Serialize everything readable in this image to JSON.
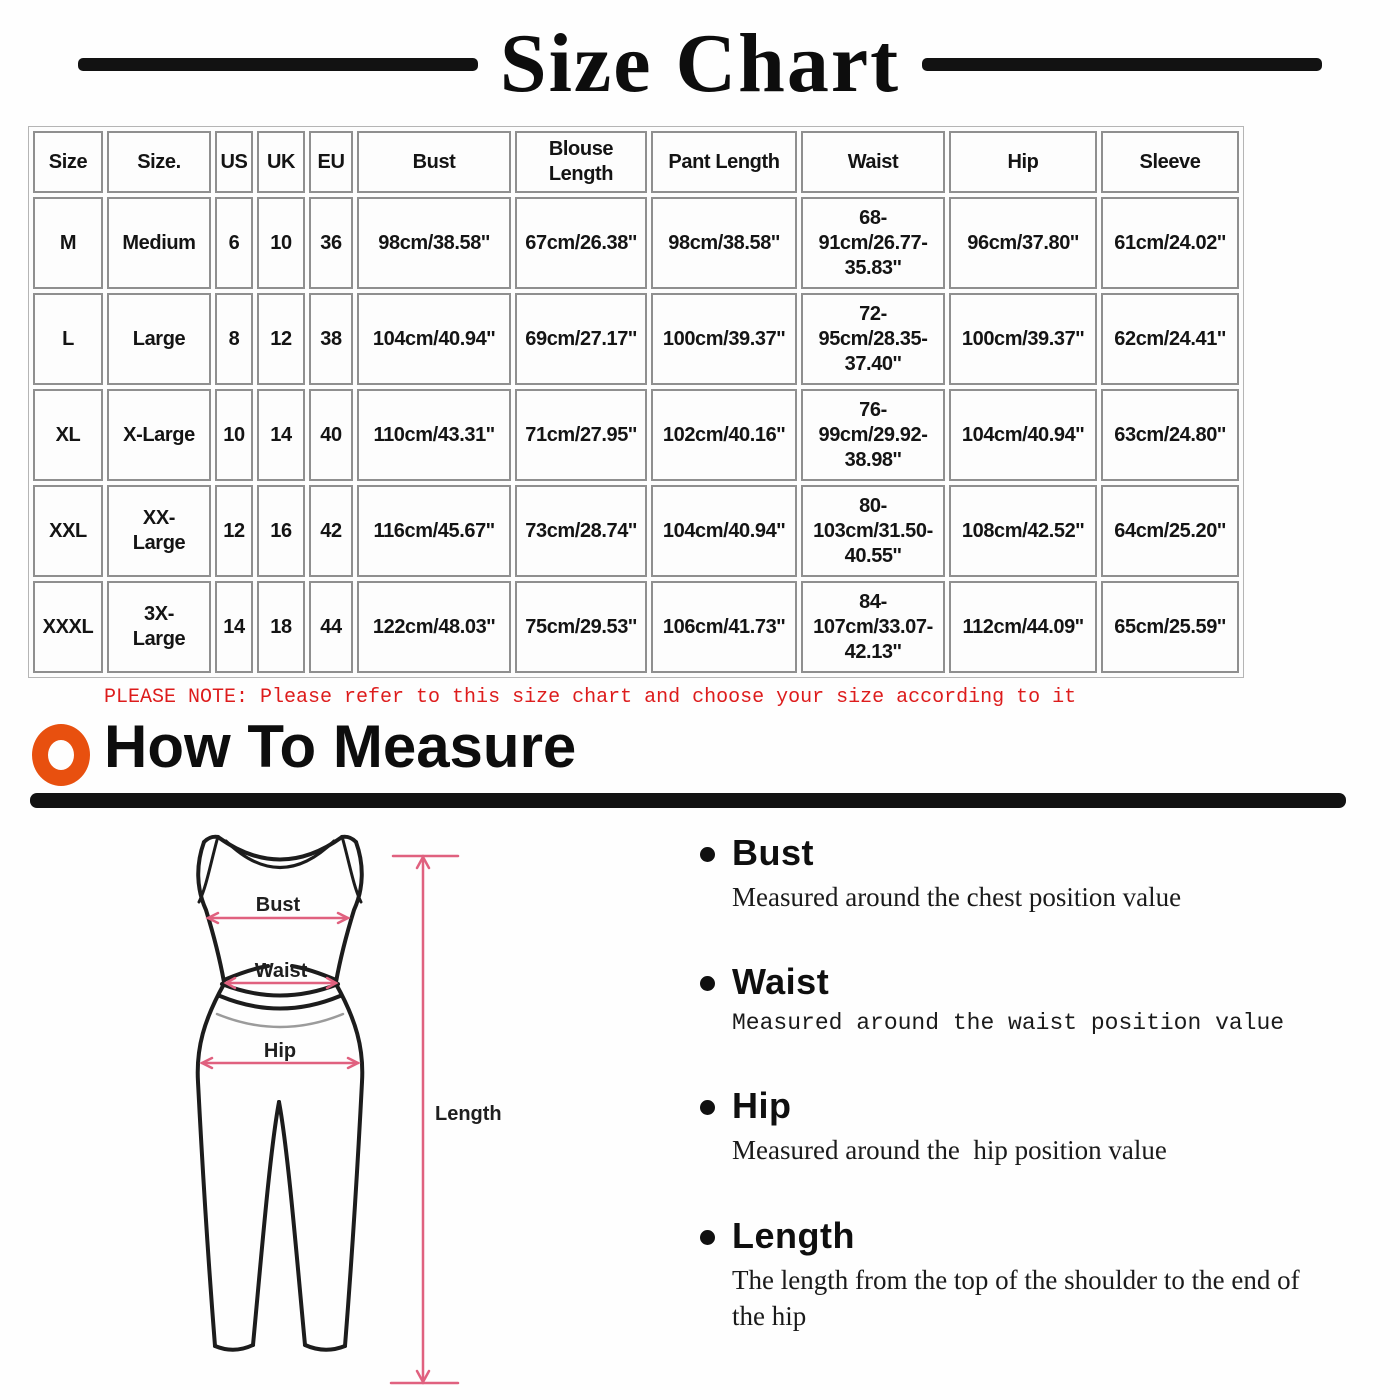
{
  "title": "Size Chart",
  "table": {
    "headers": [
      "Size",
      "Size.",
      "US",
      "UK",
      "EU",
      "Bust",
      "Blouse Length",
      "Pant Length",
      "Waist",
      "Hip",
      "Sleeve"
    ],
    "rows": [
      [
        "M",
        "Medium",
        "6",
        "10",
        "36",
        "98cm/38.58''",
        "67cm/26.38''",
        "98cm/38.58''",
        "68-\n91cm/26.77-\n35.83''",
        "96cm/37.80''",
        "61cm/24.02''"
      ],
      [
        "L",
        "Large",
        "8",
        "12",
        "38",
        "104cm/40.94''",
        "69cm/27.17''",
        "100cm/39.37''",
        "72-\n95cm/28.35-\n37.40''",
        "100cm/39.37''",
        "62cm/24.41''"
      ],
      [
        "XL",
        "X-Large",
        "10",
        "14",
        "40",
        "110cm/43.31''",
        "71cm/27.95''",
        "102cm/40.16''",
        "76-\n99cm/29.92-\n38.98''",
        "104cm/40.94''",
        "63cm/24.80''"
      ],
      [
        "XXL",
        "XX-\nLarge",
        "12",
        "16",
        "42",
        "116cm/45.67''",
        "73cm/28.74''",
        "104cm/40.94''",
        "80-\n103cm/31.50-\n40.55''",
        "108cm/42.52''",
        "64cm/25.20''"
      ],
      [
        "XXXL",
        "3X-\nLarge",
        "14",
        "18",
        "44",
        "122cm/48.03''",
        "75cm/29.53''",
        "106cm/41.73''",
        "84-\n107cm/33.07-\n42.13''",
        "112cm/44.09''",
        "65cm/25.59''"
      ]
    ]
  },
  "note": "PLEASE NOTE: Please refer to this size chart and choose your size according to it",
  "how_to_measure": {
    "title": "How To Measure",
    "items": [
      {
        "label": "Bust",
        "desc": "Measured around the chest position value"
      },
      {
        "label": "Waist",
        "desc": "Measured around the waist position value"
      },
      {
        "label": "Hip",
        "desc": "Measured around the  hip position value"
      },
      {
        "label": "Length",
        "desc": "The length from the top of the shoulder to the end of the hip"
      }
    ]
  },
  "figure": {
    "bust_label": "Bust",
    "waist_label": "Waist",
    "hip_label": "Hip",
    "length_label": "Length"
  },
  "colors": {
    "accent_orange": "#e8500f",
    "note_red": "#dd1c1c",
    "measure_line_pink": "#e0617f",
    "ink_black": "#121212"
  }
}
